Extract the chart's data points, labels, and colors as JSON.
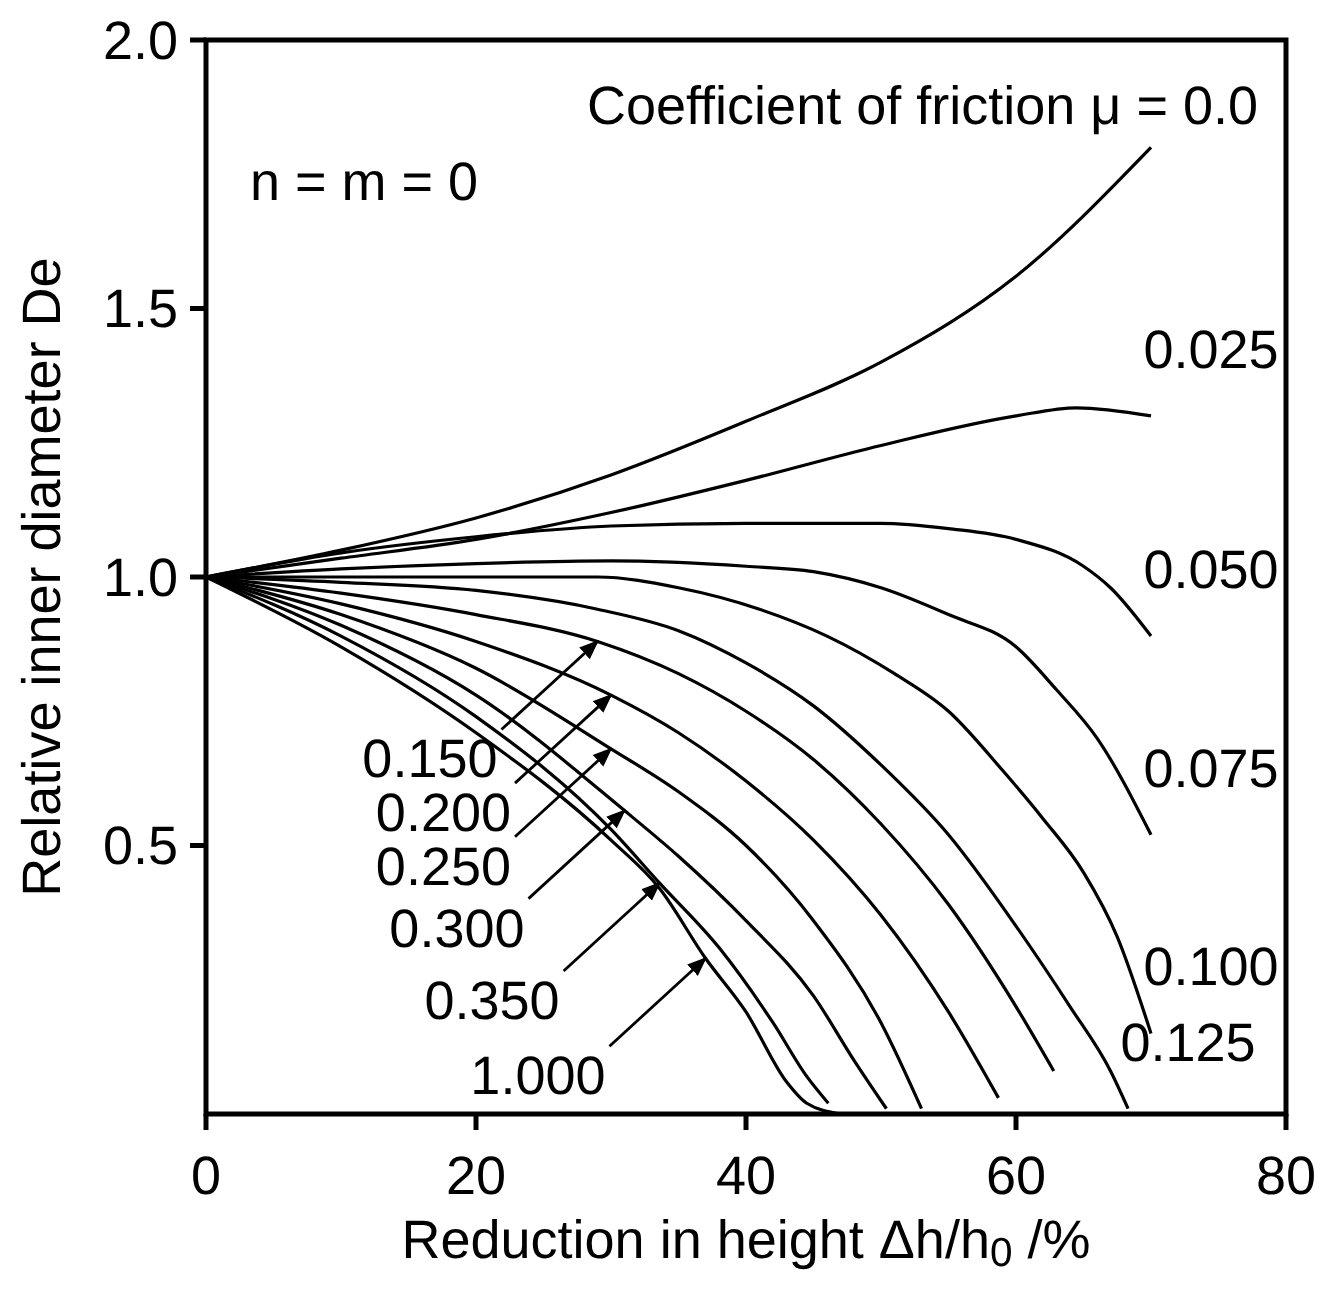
{
  "chart_data": {
    "type": "line",
    "xlabel": "Reduction in height Δh/h$_{0}$ /%",
    "ylabel": "Relative inner diameter De",
    "xlim": [
      0,
      80
    ],
    "ylim": [
      0,
      2.0
    ],
    "xticks": [
      0,
      20,
      40,
      60,
      80
    ],
    "yticks": [
      0.5,
      {
        "value": 1.0,
        "label": "1.0"
      },
      1.5,
      {
        "value": 2.0,
        "label": "2.0"
      }
    ],
    "grid": false,
    "marker": "none",
    "line_style": "solid",
    "series": [
      {
        "color": "#000000",
        "x": [
          0,
          10,
          20,
          30,
          40,
          50,
          60,
          70
        ],
        "values": [
          1.0,
          1.05,
          1.11,
          1.19,
          1.29,
          1.4,
          1.56,
          1.8
        ]
      },
      {
        "color": "#000000",
        "x": [
          0,
          10,
          20,
          30,
          40,
          50,
          60,
          64.5,
          70
        ],
        "values": [
          1.0,
          1.035,
          1.07,
          1.12,
          1.18,
          1.245,
          1.3,
          1.315,
          1.3
        ]
      },
      {
        "color": "#000000",
        "x": [
          0,
          10,
          20,
          30,
          40,
          50,
          55,
          60,
          65,
          67,
          70
        ],
        "values": [
          1.0,
          1.045,
          1.075,
          1.095,
          1.1,
          1.1,
          1.09,
          1.07,
          1.02,
          0.98,
          0.89
        ]
      },
      {
        "color": "#000000",
        "x": [
          0,
          10,
          20,
          30,
          40,
          45,
          50,
          55,
          60,
          63,
          66,
          70
        ],
        "values": [
          1.0,
          1.015,
          1.025,
          1.03,
          1.02,
          1.01,
          0.98,
          0.93,
          0.87,
          0.79,
          0.7,
          0.52
        ]
      },
      {
        "color": "#000000",
        "x": [
          0,
          10,
          20,
          29,
          35,
          41,
          46,
          51,
          55,
          59,
          62,
          65,
          67.5,
          70
        ],
        "values": [
          1.0,
          1.0,
          1.0,
          1.0,
          0.98,
          0.94,
          0.89,
          0.82,
          0.75,
          0.64,
          0.55,
          0.45,
          0.33,
          0.15
        ]
      },
      {
        "color": "#000000",
        "x": [
          0,
          10,
          20,
          29,
          35,
          40,
          45,
          50,
          55,
          60,
          64,
          67,
          68.3
        ],
        "values": [
          1.0,
          0.99,
          0.975,
          0.94,
          0.9,
          0.84,
          0.76,
          0.65,
          0.52,
          0.35,
          0.2,
          0.08,
          0.01
        ]
      },
      {
        "color": "#000000",
        "x": [
          0,
          10,
          20,
          29,
          35,
          40,
          45,
          50,
          55,
          60,
          62.8
        ],
        "values": [
          1.0,
          0.97,
          0.93,
          0.88,
          0.82,
          0.75,
          0.66,
          0.54,
          0.39,
          0.2,
          0.08
        ]
      },
      {
        "color": "#000000",
        "x": [
          0,
          10,
          20,
          30,
          35,
          40,
          45,
          50,
          55,
          58.7
        ],
        "values": [
          1.0,
          0.95,
          0.88,
          0.78,
          0.71,
          0.62,
          0.51,
          0.37,
          0.19,
          0.03
        ]
      },
      {
        "color": "#000000",
        "x": [
          0,
          10,
          20,
          30,
          35,
          40,
          45,
          50,
          53
        ],
        "values": [
          1.0,
          0.93,
          0.83,
          0.68,
          0.6,
          0.5,
          0.36,
          0.17,
          0.01
        ]
      },
      {
        "color": "#000000",
        "x": [
          0,
          10,
          20,
          31,
          35,
          40,
          45,
          48,
          50.4
        ],
        "values": [
          1.0,
          0.91,
          0.78,
          0.565,
          0.48,
          0.36,
          0.22,
          0.1,
          0.01
        ]
      },
      {
        "color": "#000000",
        "x": [
          0,
          10,
          20,
          30,
          33.6,
          38,
          42,
          44.5,
          46.1
        ],
        "values": [
          1.0,
          0.89,
          0.74,
          0.53,
          0.43,
          0.31,
          0.17,
          0.07,
          0.02
        ]
      },
      {
        "color": "#000000",
        "x": [
          0,
          10,
          20,
          30,
          33.6,
          37,
          40,
          43,
          44.5,
          47
        ],
        "values": [
          1.0,
          0.87,
          0.71,
          0.51,
          0.42,
          0.29,
          0.19,
          0.06,
          0.02,
          0.0
        ]
      }
    ],
    "annotations": [
      "Coefficient of friction μ = 0.0",
      "n = m = 0",
      {
        "text": "0.025",
        "x": 70,
        "y": 1.3
      },
      {
        "text": "0.050",
        "x": 70,
        "y": 0.89
      },
      {
        "text": "0.075",
        "x": 70,
        "y": 0.52
      },
      {
        "text": "0.100",
        "x": 70,
        "y": 0.15
      },
      {
        "text": "0.125",
        "x": 68.3,
        "y": 0.01
      },
      {
        "text": "0.150",
        "x": 29,
        "y": 0.88
      },
      {
        "text": "0.200",
        "x": 30,
        "y": 0.78
      },
      {
        "text": "0.250",
        "x": 30,
        "y": 0.68
      },
      {
        "text": "0.300",
        "x": 31,
        "y": 0.565
      },
      {
        "text": "0.350",
        "x": 33.6,
        "y": 0.43
      },
      {
        "text": "1.000",
        "x": 37,
        "y": 0.29
      }
    ]
  }
}
